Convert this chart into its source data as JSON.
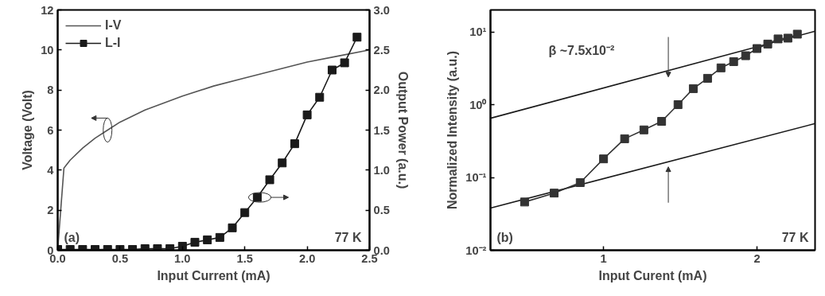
{
  "chart_data": [
    {
      "type": "line",
      "xlabel": "Input Current (mA)",
      "ylabel": "Voltage (Volt)",
      "y2label": "Output Power (a.u.)",
      "xlim": [
        0,
        2.5
      ],
      "xticks": [
        {
          "value": 0,
          "label": "0.0"
        },
        {
          "value": 0.5,
          "label": "0.5"
        },
        {
          "value": 1,
          "label": "1.0"
        },
        {
          "value": 1.5,
          "label": "1.5"
        },
        {
          "value": 2,
          "label": "2.0"
        },
        {
          "value": 2.5,
          "label": "2.5"
        }
      ],
      "ylim": [
        0,
        12
      ],
      "yticks": [
        0,
        2,
        4,
        6,
        8,
        10,
        12
      ],
      "y2lim": [
        0,
        3
      ],
      "y2ticks": [
        {
          "value": 0,
          "label": "0.0"
        },
        {
          "value": 0.5,
          "label": "0.5"
        },
        {
          "value": 1,
          "label": "1.0"
        },
        {
          "value": 1.5,
          "label": "1.5"
        },
        {
          "value": 2,
          "label": "2.0"
        },
        {
          "value": 2.5,
          "label": "2.5"
        },
        {
          "value": 3,
          "label": "3.0"
        }
      ],
      "legend": "top left",
      "annotations": [
        "(a)",
        "77 K"
      ],
      "series": [
        {
          "name": "I-V",
          "color": "#555555",
          "marker": "none",
          "x": [
            0,
            0.05,
            0.1,
            0.2,
            0.3,
            0.4,
            0.5,
            0.7,
            1.0,
            1.25,
            1.5,
            1.75,
            2.0,
            2.25,
            2.5
          ],
          "values": [
            0,
            4.1,
            4.5,
            5.1,
            5.6,
            6.0,
            6.4,
            7.0,
            7.7,
            8.2,
            8.6,
            9.0,
            9.4,
            9.7,
            10.0
          ]
        },
        {
          "name": "L-I",
          "color": "#1a1a1a",
          "marker": "square",
          "axis": "y2",
          "x": [
            0,
            0.1,
            0.2,
            0.3,
            0.4,
            0.5,
            0.6,
            0.7,
            0.8,
            0.9,
            1.0,
            1.1,
            1.2,
            1.3,
            1.4,
            1.5,
            1.6,
            1.7,
            1.8,
            1.9,
            2.0,
            2.1,
            2.2,
            2.3,
            2.4
          ],
          "values": [
            0.01,
            0.01,
            0.01,
            0.01,
            0.01,
            0.01,
            0.01,
            0.02,
            0.02,
            0.02,
            0.05,
            0.1,
            0.13,
            0.16,
            0.28,
            0.47,
            0.66,
            0.88,
            1.09,
            1.33,
            1.69,
            1.91,
            2.25,
            2.34,
            2.66
          ]
        }
      ]
    },
    {
      "type": "line",
      "xlabel": "Input Curent (mA)",
      "ylabel": "Normalized Intensity (a.u.)",
      "log": "xy",
      "xlim": [
        0.6,
        2.6
      ],
      "xticks": [
        1,
        2
      ],
      "ylim": [
        0.01,
        20
      ],
      "yticks": [
        {
          "value": 0.01,
          "label": "10⁻²"
        },
        {
          "value": 0.1,
          "label": "10⁻¹"
        },
        {
          "value": 1,
          "label": "10⁰"
        },
        {
          "value": 10,
          "label": "10¹"
        }
      ],
      "annotations": [
        "β ~7.5x10⁻²",
        "(b)",
        "77 K"
      ],
      "series": [
        {
          "color": "#1a1a1a",
          "x": [
            0.6,
            2.6
          ],
          "values": [
            0.65,
            10.2
          ]
        },
        {
          "color": "#1a1a1a",
          "x": [
            0.6,
            2.6
          ],
          "values": [
            0.038,
            0.55
          ]
        },
        {
          "color": "#333333",
          "marker": "square",
          "x": [
            0.7,
            0.8,
            0.9,
            1.0,
            1.1,
            1.2,
            1.3,
            1.4,
            1.5,
            1.6,
            1.7,
            1.8,
            1.9,
            2.0,
            2.1,
            2.2,
            2.3,
            2.4
          ],
          "values": [
            0.046,
            0.061,
            0.085,
            0.18,
            0.34,
            0.45,
            0.59,
            1.0,
            1.66,
            2.3,
            3.2,
            3.9,
            4.7,
            5.9,
            6.8,
            8.0,
            8.2,
            9.3
          ]
        }
      ]
    }
  ]
}
